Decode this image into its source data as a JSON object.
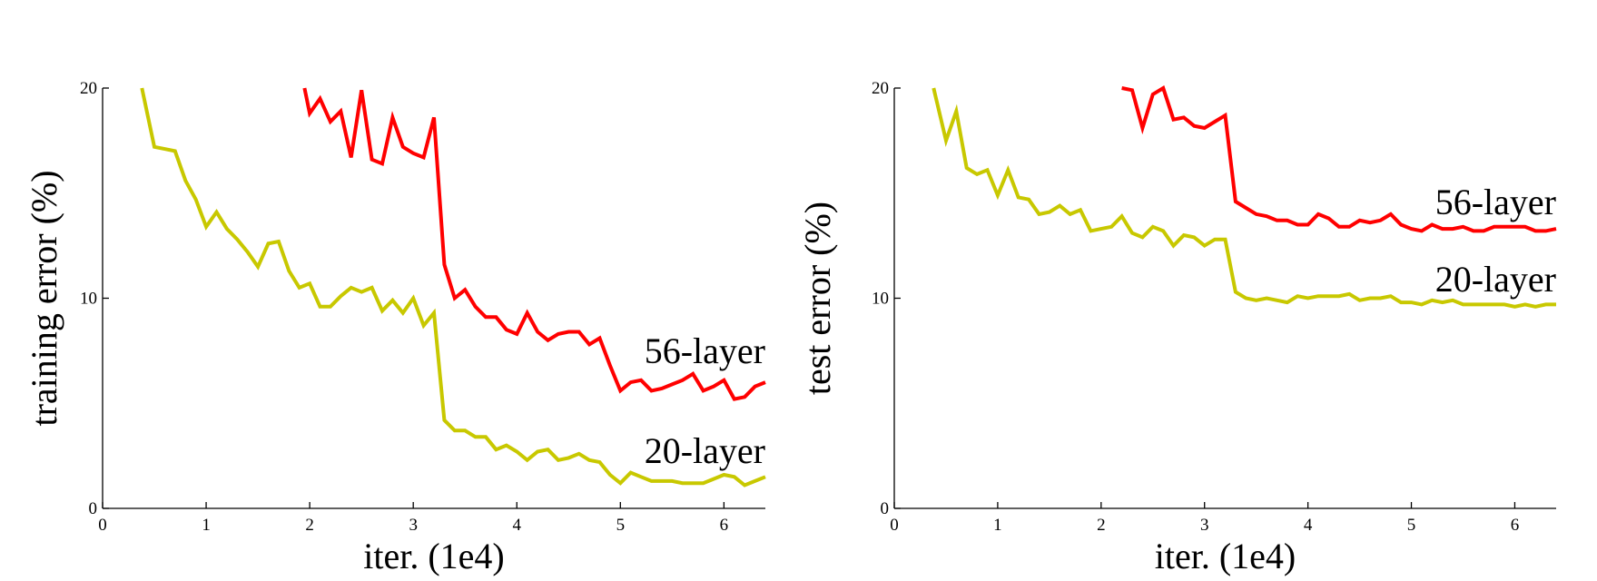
{
  "chart_data": [
    {
      "type": "line",
      "xlabel": "iter. (1e4)",
      "ylabel": "training error (%)",
      "xlim": [
        0,
        6.4
      ],
      "ylim": [
        0,
        20
      ],
      "xticks": [
        0,
        1,
        2,
        3,
        4,
        5,
        6
      ],
      "yticks": [
        0,
        10,
        20
      ],
      "grid": false,
      "series": [
        {
          "name": "56-layer",
          "color": "#ff0000",
          "x": [
            1.95,
            2.0,
            2.1,
            2.2,
            2.3,
            2.4,
            2.5,
            2.6,
            2.7,
            2.8,
            2.9,
            3.0,
            3.1,
            3.2,
            3.3,
            3.4,
            3.5,
            3.6,
            3.7,
            3.8,
            3.9,
            4.0,
            4.1,
            4.2,
            4.3,
            4.4,
            4.5,
            4.6,
            4.7,
            4.8,
            4.9,
            5.0,
            5.1,
            5.2,
            5.3,
            5.4,
            5.5,
            5.6,
            5.7,
            5.8,
            5.9,
            6.0,
            6.1,
            6.2,
            6.3,
            6.4
          ],
          "y": [
            20.0,
            18.8,
            19.5,
            18.4,
            18.9,
            16.7,
            19.9,
            16.6,
            16.4,
            18.6,
            17.2,
            16.9,
            16.7,
            18.6,
            11.6,
            10.0,
            10.4,
            9.6,
            9.1,
            9.1,
            8.5,
            8.3,
            9.3,
            8.4,
            8.0,
            8.3,
            8.4,
            8.4,
            7.8,
            8.1,
            6.8,
            5.6,
            6.0,
            6.1,
            5.6,
            5.7,
            5.9,
            6.1,
            6.4,
            5.6,
            5.8,
            6.1,
            5.2,
            5.3,
            5.8,
            6.0
          ]
        },
        {
          "name": "20-layer",
          "color": "#c8c800",
          "x": [
            0.38,
            0.5,
            0.6,
            0.7,
            0.8,
            0.9,
            1.0,
            1.1,
            1.2,
            1.3,
            1.4,
            1.5,
            1.6,
            1.7,
            1.8,
            1.9,
            2.0,
            2.1,
            2.2,
            2.3,
            2.4,
            2.5,
            2.6,
            2.7,
            2.8,
            2.9,
            3.0,
            3.1,
            3.2,
            3.3,
            3.4,
            3.5,
            3.6,
            3.7,
            3.8,
            3.9,
            4.0,
            4.1,
            4.2,
            4.3,
            4.4,
            4.5,
            4.6,
            4.7,
            4.8,
            4.9,
            5.0,
            5.1,
            5.2,
            5.3,
            5.4,
            5.5,
            5.6,
            5.7,
            5.8,
            5.9,
            6.0,
            6.1,
            6.2,
            6.3,
            6.4
          ],
          "y": [
            20.0,
            17.2,
            17.1,
            17.0,
            15.6,
            14.7,
            13.4,
            14.1,
            13.3,
            12.8,
            12.2,
            11.5,
            12.6,
            12.7,
            11.3,
            10.5,
            10.7,
            9.6,
            9.6,
            10.1,
            10.5,
            10.3,
            10.5,
            9.4,
            9.9,
            9.3,
            10.0,
            8.7,
            9.3,
            4.2,
            3.7,
            3.7,
            3.4,
            3.4,
            2.8,
            3.0,
            2.7,
            2.3,
            2.7,
            2.8,
            2.3,
            2.4,
            2.6,
            2.3,
            2.2,
            1.6,
            1.2,
            1.7,
            1.5,
            1.3,
            1.3,
            1.3,
            1.2,
            1.2,
            1.2,
            1.4,
            1.6,
            1.5,
            1.1,
            1.3,
            1.5
          ]
        }
      ]
    },
    {
      "type": "line",
      "xlabel": "iter. (1e4)",
      "ylabel": "test error (%)",
      "xlim": [
        0,
        6.4
      ],
      "ylim": [
        0,
        20
      ],
      "xticks": [
        0,
        1,
        2,
        3,
        4,
        5,
        6
      ],
      "yticks": [
        0,
        10,
        20
      ],
      "grid": false,
      "series": [
        {
          "name": "56-layer",
          "color": "#ff0000",
          "x": [
            2.2,
            2.3,
            2.4,
            2.5,
            2.6,
            2.7,
            2.8,
            2.9,
            3.0,
            3.1,
            3.2,
            3.3,
            3.4,
            3.5,
            3.6,
            3.7,
            3.8,
            3.9,
            4.0,
            4.1,
            4.2,
            4.3,
            4.4,
            4.5,
            4.6,
            4.7,
            4.8,
            4.9,
            5.0,
            5.1,
            5.2,
            5.3,
            5.4,
            5.5,
            5.6,
            5.7,
            5.8,
            5.9,
            6.0,
            6.1,
            6.2,
            6.3,
            6.4
          ],
          "y": [
            20.0,
            19.9,
            18.1,
            19.7,
            20.0,
            18.5,
            18.6,
            18.2,
            18.1,
            18.4,
            18.7,
            14.6,
            14.3,
            14.0,
            13.9,
            13.7,
            13.7,
            13.5,
            13.5,
            14.0,
            13.8,
            13.4,
            13.4,
            13.7,
            13.6,
            13.7,
            14.0,
            13.5,
            13.3,
            13.2,
            13.5,
            13.3,
            13.3,
            13.4,
            13.2,
            13.2,
            13.4,
            13.4,
            13.4,
            13.4,
            13.2,
            13.2,
            13.3
          ]
        },
        {
          "name": "20-layer",
          "color": "#c8c800",
          "x": [
            0.38,
            0.5,
            0.6,
            0.7,
            0.8,
            0.9,
            1.0,
            1.1,
            1.2,
            1.3,
            1.4,
            1.5,
            1.6,
            1.7,
            1.8,
            1.9,
            2.0,
            2.1,
            2.2,
            2.3,
            2.4,
            2.5,
            2.6,
            2.7,
            2.8,
            2.9,
            3.0,
            3.1,
            3.2,
            3.3,
            3.4,
            3.5,
            3.6,
            3.7,
            3.8,
            3.9,
            4.0,
            4.1,
            4.2,
            4.3,
            4.4,
            4.5,
            4.6,
            4.7,
            4.8,
            4.9,
            5.0,
            5.1,
            5.2,
            5.3,
            5.4,
            5.5,
            5.6,
            5.7,
            5.8,
            5.9,
            6.0,
            6.1,
            6.2,
            6.3,
            6.4
          ],
          "y": [
            20.0,
            17.5,
            18.9,
            16.2,
            15.9,
            16.1,
            14.9,
            16.1,
            14.8,
            14.7,
            14.0,
            14.1,
            14.4,
            14.0,
            14.2,
            13.2,
            13.3,
            13.4,
            13.9,
            13.1,
            12.9,
            13.4,
            13.2,
            12.5,
            13.0,
            12.9,
            12.5,
            12.8,
            12.8,
            10.3,
            10.0,
            9.9,
            10.0,
            9.9,
            9.8,
            10.1,
            10.0,
            10.1,
            10.1,
            10.1,
            10.2,
            9.9,
            10.0,
            10.0,
            10.1,
            9.8,
            9.8,
            9.7,
            9.9,
            9.8,
            9.9,
            9.7,
            9.7,
            9.7,
            9.7,
            9.7,
            9.6,
            9.7,
            9.6,
            9.7,
            9.7
          ]
        }
      ]
    }
  ]
}
